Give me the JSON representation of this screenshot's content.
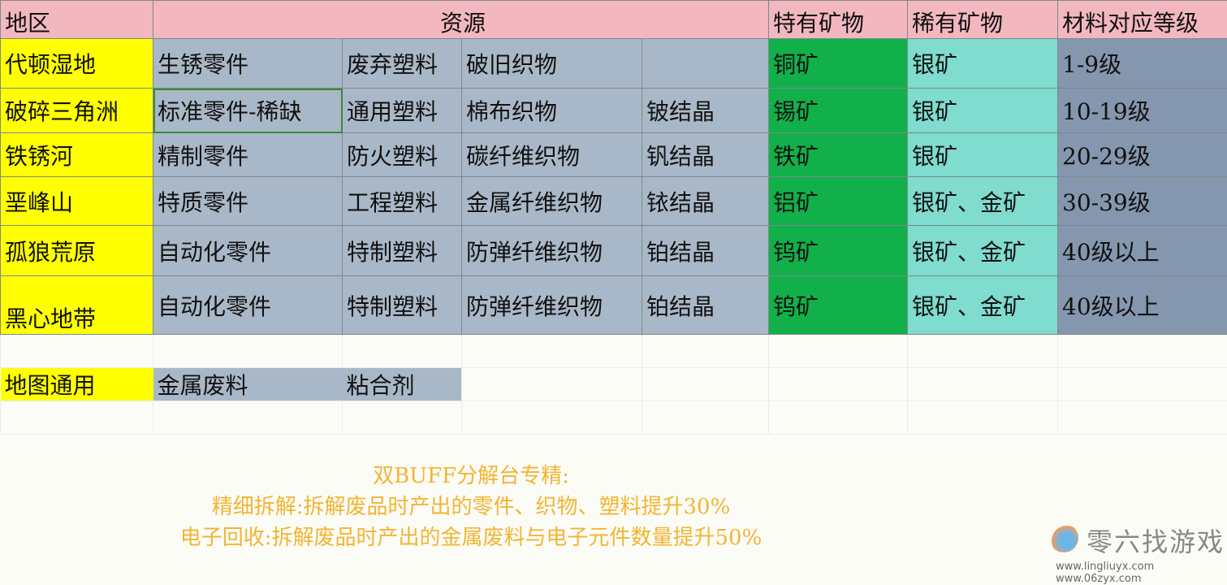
{
  "header": {
    "region": "地区",
    "resources": "资源",
    "special": "特有矿物",
    "rare": "稀有矿物",
    "level": "材料对应等级"
  },
  "rows": [
    {
      "region": "代顿湿地",
      "r1": "生锈零件",
      "r2": "废弃塑料",
      "r3": "破旧织物",
      "r4": "",
      "special": "铜矿",
      "rare": "银矿",
      "level": "1-9级"
    },
    {
      "region": "破碎三角洲",
      "r1": "标准零件-稀缺",
      "r2": "通用塑料",
      "r3": "棉布织物",
      "r4": "铍结晶",
      "special": "锡矿",
      "rare": "银矿",
      "level": "10-19级"
    },
    {
      "region": "铁锈河",
      "r1": "精制零件",
      "r2": "防火塑料",
      "r3": "碳纤维织物",
      "r4": "钒结晶",
      "special": "铁矿",
      "rare": "银矿",
      "level": "20-29级"
    },
    {
      "region": "垩峰山",
      "r1": "特质零件",
      "r2": "工程塑料",
      "r3": "金属纤维织物",
      "r4": "铱结晶",
      "special": "铝矿",
      "rare": "银矿、金矿",
      "level": "30-39级"
    },
    {
      "region": "孤狼荒原",
      "r1": "自动化零件",
      "r2": "特制塑料",
      "r3": "防弹纤维织物",
      "r4": "铂结晶",
      "special": "钨矿",
      "rare": "银矿、金矿",
      "level": "40级以上"
    },
    {
      "region": "黑心地带",
      "r1": "自动化零件",
      "r2": "特制塑料",
      "r3": "防弹纤维织物",
      "r4": "铂结晶",
      "special": "钨矿",
      "rare": "银矿、金矿",
      "level": "40级以上"
    }
  ],
  "common": {
    "label": "地图通用",
    "r1": "金属废料",
    "r2": "粘合剂"
  },
  "note": {
    "title": "双BUFF分解台专精:",
    "line1": "精细拆解:拆解废品时产出的零件、织物、塑料提升30%",
    "line2": "电子回收:拆解废品时产出的金属废料与电子元件数量提升50%"
  },
  "watermark": {
    "name": "零六找游戏",
    "urls": "www.lingliuyx.com   www.06zyx.com"
  },
  "colors": {
    "header": "#f3b7bf",
    "region": "#ffff00",
    "resource": "#a9b8c8",
    "special": "#12b04a",
    "rare": "#7fdccf",
    "level": "#8597ae",
    "note": "#f2b531"
  }
}
